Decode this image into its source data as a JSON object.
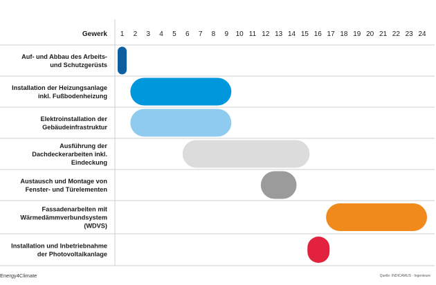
{
  "chart_data": {
    "type": "gantt",
    "column_header": "Gewerk",
    "x_ticks": [
      "1",
      "2",
      "3",
      "4",
      "5",
      "6",
      "7",
      "8",
      "9",
      "10",
      "11",
      "12",
      "13",
      "14",
      "15",
      "16",
      "17",
      "18",
      "19",
      "20",
      "21",
      "22",
      "23",
      "24"
    ],
    "tasks": [
      {
        "lines": [
          "Auf- und Abbau des Arbeits-",
          "und Schutzgerüsts"
        ],
        "start": 1,
        "end": 1,
        "color": "#0e5fa0"
      },
      {
        "lines": [
          "Installation der Heizungsanlage",
          "inkl. Fußbodenheizung"
        ],
        "start": 2,
        "end": 9,
        "color": "#0097dc"
      },
      {
        "lines": [
          "Elektroinstallation der",
          "Gebäudeinfrastruktur"
        ],
        "start": 2,
        "end": 9,
        "color": "#8ecbef"
      },
      {
        "lines": [
          "Ausführung der",
          "Dachdeckerarbeiten inkl.",
          "Eindeckung"
        ],
        "start": 6,
        "end": 15,
        "color": "#dcdcdc"
      },
      {
        "lines": [
          "Austausch und Montage von",
          "Fenster- und Türelementen"
        ],
        "start": 12,
        "end": 14,
        "color": "#9b9b9b"
      },
      {
        "lines": [
          "Fassadenarbeiten mit",
          "Wärmedämmverbundsystem",
          "(WDVS)"
        ],
        "start": 17,
        "end": 24,
        "color": "#f08a1d"
      },
      {
        "lines": [
          "Installation und Inbetriebnahme",
          "der Photovoltaikanlage"
        ],
        "start": 16,
        "end": 16,
        "color": "#e2223e"
      }
    ]
  },
  "footer": {
    "brand": "Energy4Climate",
    "source": "Quelle: INDICAMUS · Ingenieure"
  }
}
